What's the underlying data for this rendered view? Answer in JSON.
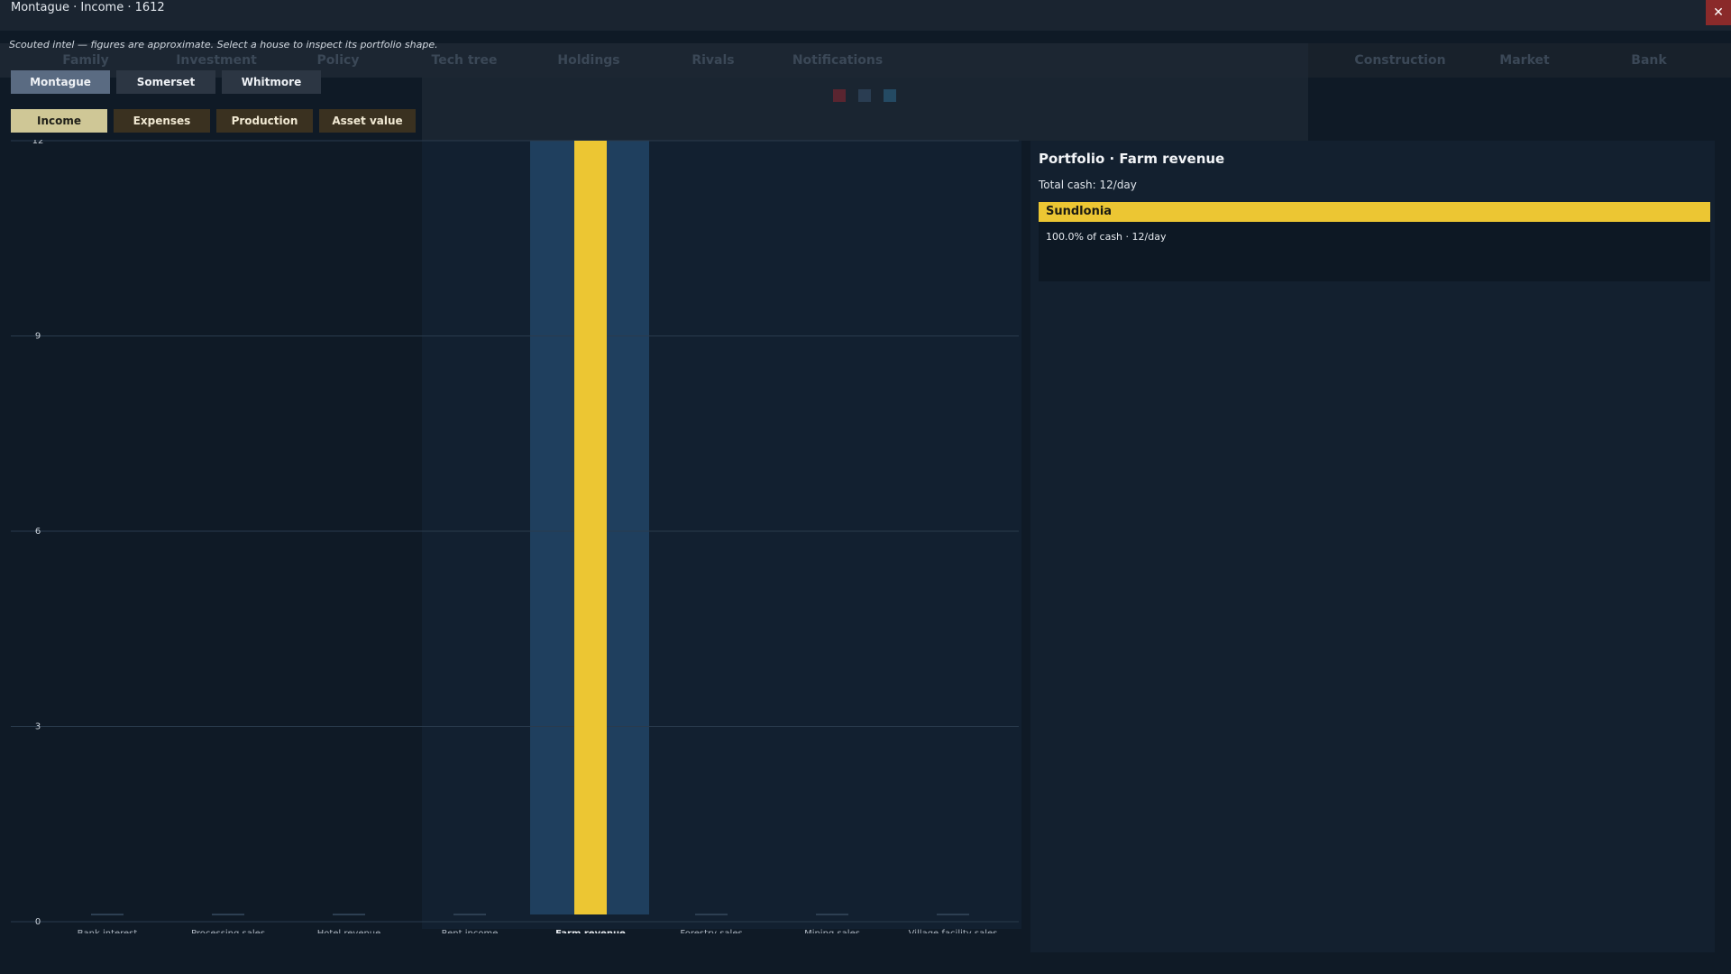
{
  "window": {
    "title": "Montague · Income · 1612",
    "close_label": "✕"
  },
  "background_tabs": [
    "Family",
    "Investment",
    "Policy",
    "Tech tree",
    "Holdings",
    "Rivals",
    "Notifications",
    "Construction",
    "Market",
    "Bank"
  ],
  "intel_note": "Scouted intel — figures are approximate. Select a house to inspect its portfolio shape.",
  "houses": [
    {
      "label": "Montague",
      "active": true
    },
    {
      "label": "Somerset",
      "active": false
    },
    {
      "label": "Whitmore",
      "active": false
    }
  ],
  "metrics": [
    {
      "label": "Income",
      "active": true
    },
    {
      "label": "Expenses",
      "active": false
    },
    {
      "label": "Production",
      "active": false
    },
    {
      "label": "Asset value",
      "active": false
    }
  ],
  "chart_data": {
    "type": "bar",
    "categories": [
      "Bank interest",
      "Processing sales",
      "Hotel revenue",
      "Rent income",
      "Farm revenue",
      "Forestry sales",
      "Mining sales",
      "Village facility sales"
    ],
    "values": [
      0,
      0,
      0,
      0,
      12,
      0,
      0,
      0
    ],
    "selected_category": "Farm revenue",
    "ylim": [
      0,
      12
    ],
    "yticks": [
      0,
      3,
      6,
      9,
      12
    ],
    "grid": true,
    "colors": {
      "bar": "#ecc633",
      "selected_highlight": "#1f3f5e",
      "grid": "#2a3b4d",
      "tick_text": "#c9d1da",
      "label_text": "#aeb7c2",
      "selected_label_text": "#e8ecf1"
    }
  },
  "portfolio": {
    "title": "Portfolio · Farm revenue",
    "total": "Total cash: 12/day",
    "entries": [
      {
        "name": "Sundlonia",
        "detail": "100.0% of cash · 12/day"
      }
    ]
  }
}
